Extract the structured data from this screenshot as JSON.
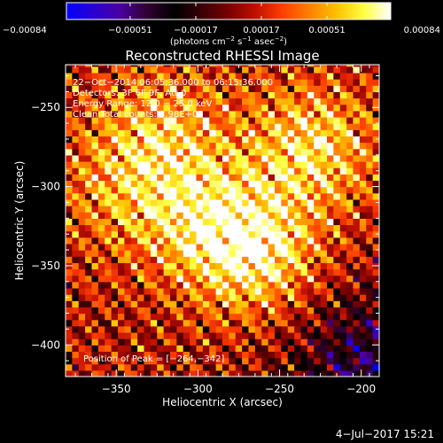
{
  "chart_data": {
    "type": "heatmap",
    "title": "Reconstructed RHESSI Image",
    "xlabel": "Heliocentric X (arcsec)",
    "ylabel": "Heliocentric Y (arcsec)",
    "xlim": [
      -381,
      -189
    ],
    "ylim": [
      -420,
      -223
    ],
    "x_ticks": [
      -350,
      -300,
      -250,
      -200
    ],
    "x_tick_labels": [
      "−350",
      "−300",
      "−250",
      "−200"
    ],
    "y_ticks": [
      -250,
      -300,
      -350,
      -400
    ],
    "y_tick_labels": [
      "−250",
      "−300",
      "−350",
      "−400"
    ],
    "colorbar": {
      "range": [
        -0.00084,
        0.00084
      ],
      "ticks": [
        -0.00084,
        -0.00051,
        -0.00017,
        0.00017,
        0.00051,
        0.00084
      ],
      "tick_labels": [
        "−0.00084",
        "−0.00051",
        "−0.00017",
        "0.00017",
        "0.00051",
        "0.00084"
      ],
      "unit_label": {
        "prefix": "(photons cm",
        "exp1": "−2",
        "mid1": " s",
        "exp2": "−1",
        "mid2": " asec",
        "exp3": "−2",
        "suffix": ")"
      },
      "colors": [
        "#0000ff",
        "#2a00d0",
        "#4a00a0",
        "#300030",
        "#000000",
        "#3a0008",
        "#7a0000",
        "#c01000",
        "#ff4000",
        "#ff8000",
        "#ffc000",
        "#ffff40",
        "#ffffff"
      ]
    },
    "annotations": [
      "22−Oct−2014 06:05:36.000 to 06:15:36.000",
      "Detectors: 3F 6F 9F, Att 0",
      "Energy Range: 12.0 − 25.0 keV",
      "Clean     Total counts: 3.98E+03"
    ],
    "peak_label": "Position of Peak = [−264,−342]",
    "peak": {
      "x": -264,
      "y": -342
    },
    "bright_sources": [
      {
        "x": -230,
        "y": -275,
        "amplitude": 0.00075
      },
      {
        "x": -264,
        "y": -342,
        "amplitude": 0.00084
      },
      {
        "x": -320,
        "y": -265,
        "amplitude": 0.00055
      },
      {
        "x": -300,
        "y": -320,
        "amplitude": 0.0006
      },
      {
        "x": -350,
        "y": -300,
        "amplitude": 0.0004
      }
    ]
  },
  "footer": {
    "timestamp": "4−Jul−2017 15:21"
  }
}
